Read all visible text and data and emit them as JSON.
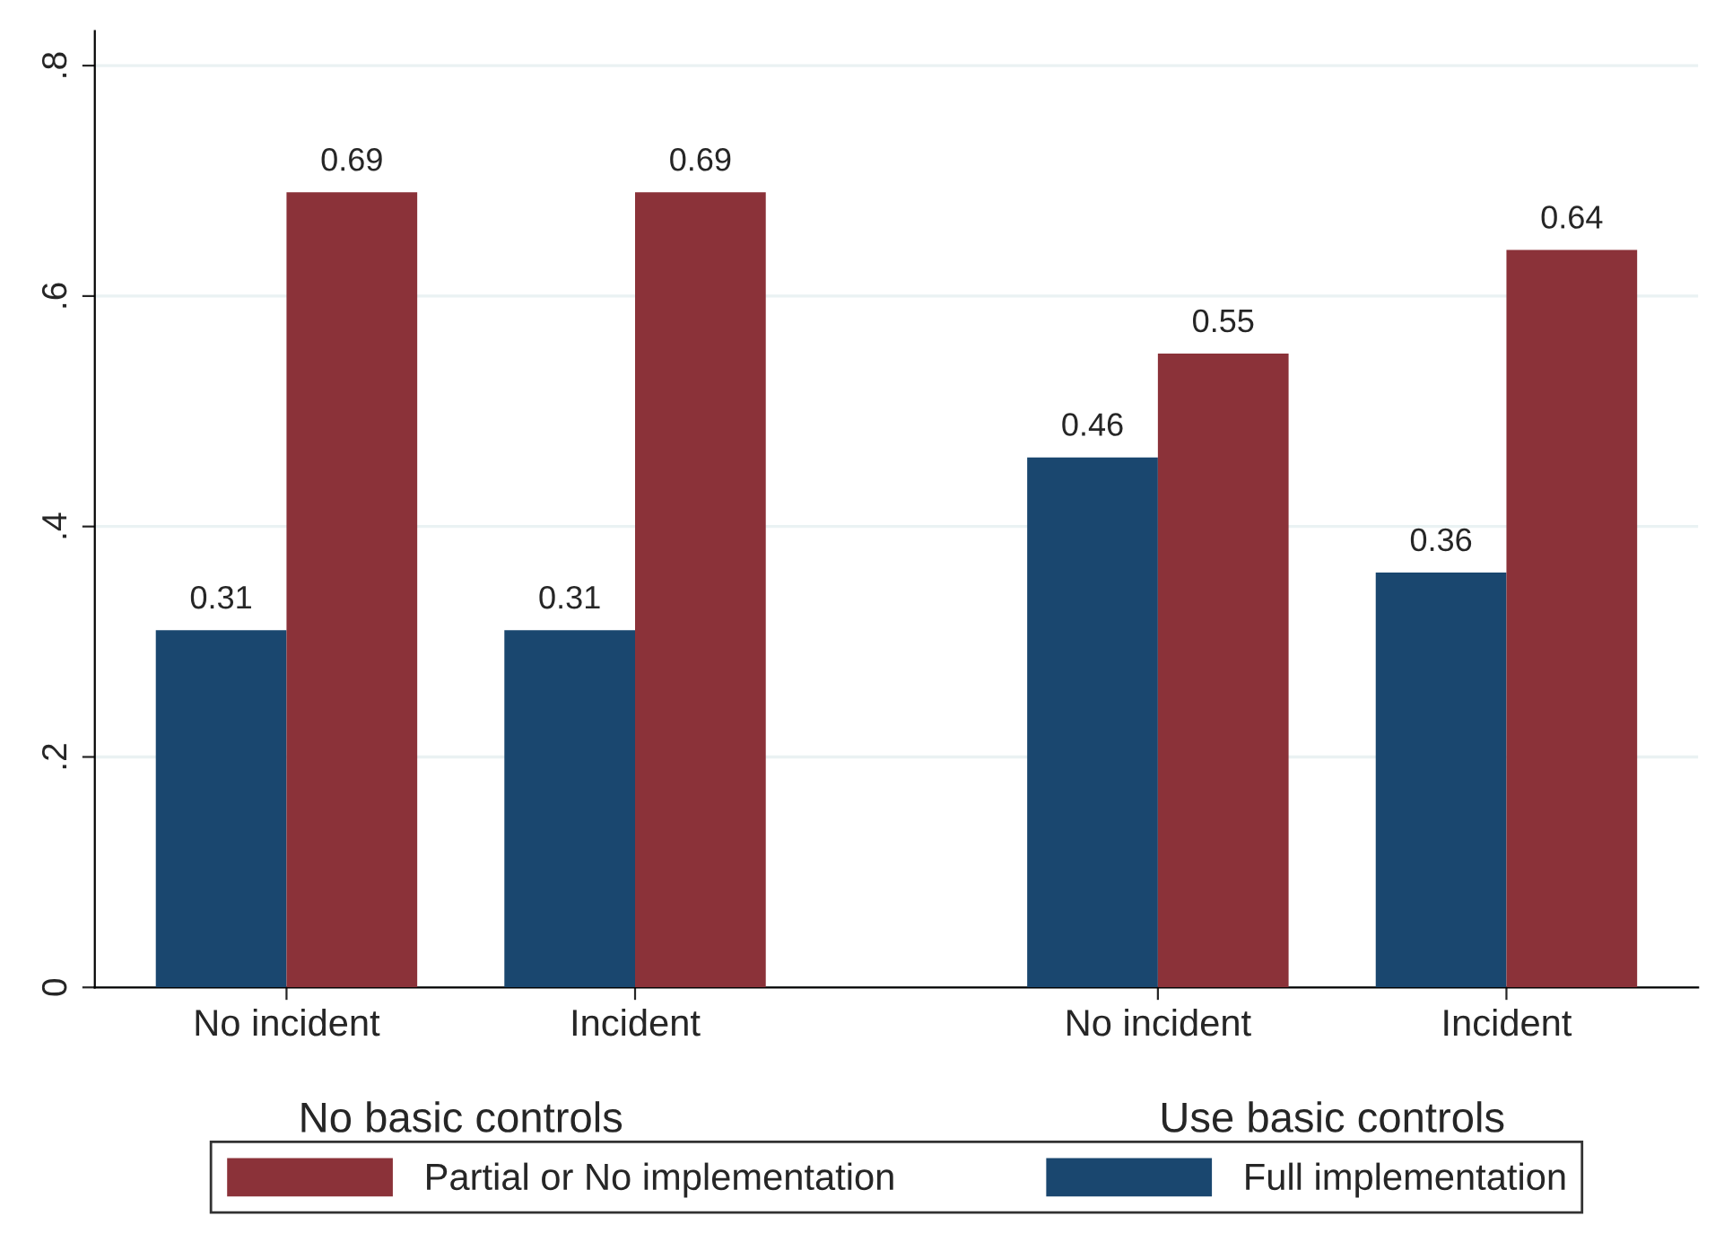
{
  "chart_data": {
    "type": "bar",
    "categories": [
      "No incident",
      "Incident",
      "No incident",
      "Incident"
    ],
    "series": [
      {
        "name": "Full implementation",
        "color": "#1a476f",
        "values": [
          0.31,
          0.31,
          0.46,
          0.36
        ]
      },
      {
        "name": "Partial or No implementation",
        "color": "#8b3239",
        "values": [
          0.69,
          0.69,
          0.55,
          0.64
        ]
      }
    ],
    "annotations": [
      "No basic controls",
      "Use basic controls"
    ],
    "ylim": [
      0,
      0.83
    ],
    "yticks": [
      0,
      {
        "value": 0.2,
        "label": ".2"
      },
      {
        "value": 0.4,
        "label": ".4"
      },
      {
        "value": 0.6,
        "label": ".6"
      },
      {
        "value": 0.8,
        "label": ".8"
      }
    ],
    "grid": "y",
    "legend": "bottom",
    "data_labels": true
  }
}
